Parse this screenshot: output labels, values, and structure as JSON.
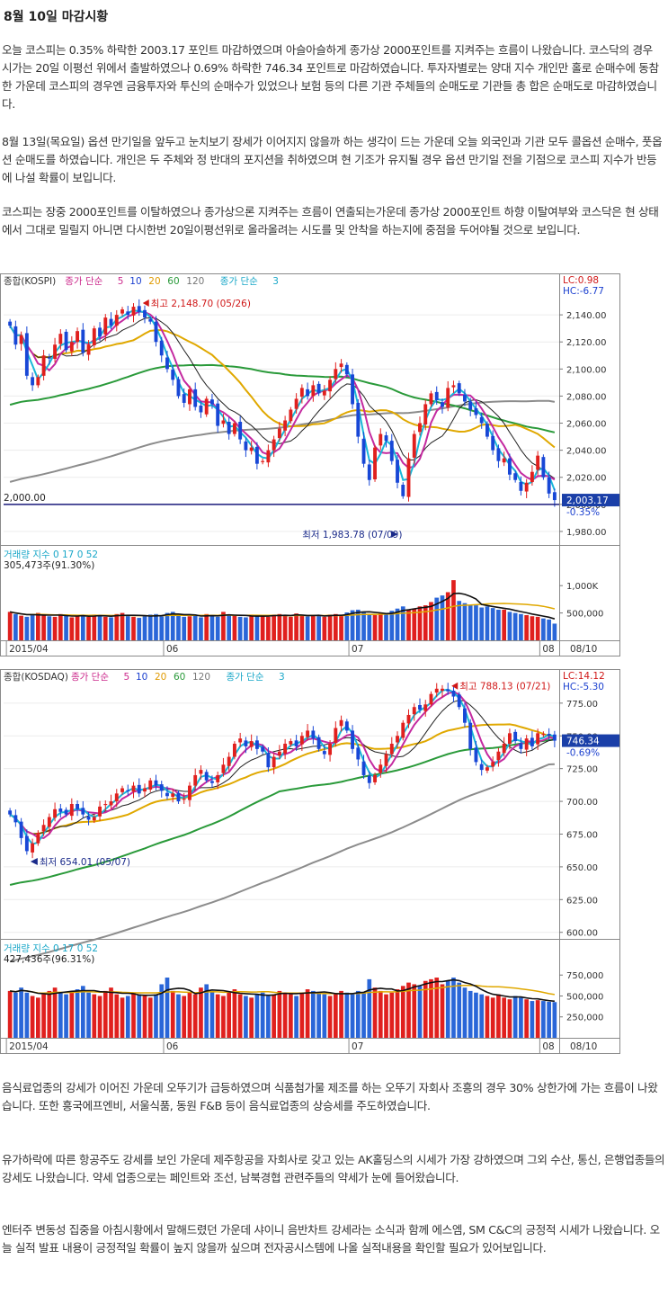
{
  "article": {
    "title": "8월 10일 마감시황",
    "paragraphs": [
      "오늘 코스피는 0.35% 하락한 2003.17 포인트 마감하였으며 아슬아슬하게 종가상 2000포인트를 지켜주는 흐름이 나왔습니다. 코스닥의 경우 시가는 20일 이평선 위에서 출발하였으나 0.69% 하락한 746.34 포인트로 마감하였습니다. 투자자별로는 양대 지수 개인만 홀로 순매수에 동참한 가운데 코스피의 경우엔 금융투자와 투신의 순매수가 있었으나 보험 등의 다른 기관 주체들의 순매도로 기관들 총 합은 순매도로 마감하였습니다.",
      "8월 13일(목요일) 옵션 만기일을 앞두고 눈치보기 장세가 이어지지 않을까 하는 생각이 드는 가운데 오늘 외국인과 기관 모두 콜옵션 순매수, 풋옵션 순매도를 하였습니다. 개인은 두 주체와 정 반대의 포지션을 취하였으며 현 기조가 유지될 경우 옵션 만기일 전을 기점으로 코스피 지수가 반등에 나설 확률이 보입니다.",
      "코스피는 장중 2000포인트를 이탈하였으나 종가상으론 지켜주는 흐름이 연출되는가운데 종가상 2000포인트 하향 이탈여부와 코스닥은 현 상태에서 그대로 밀릴지 아니면 다시한번 20일이평선위로 올라올려는 시도를 및 안착을 하는지에 중점을 두어야될 것으로 보입니다.",
      "음식료업종의 강세가 이어진 가운데 오뚜기가 급등하였으며 식품첨가물 제조를 하는 오뚜기 자회사 조흥의 경우 30% 상한가에 가는 흐름이 나왔습니다. 또한 흥국에프엔비, 서울식품, 동원 F&B 등이 음식료업종의 상승세를 주도하였습니다.",
      "유가하락에 따른 항공주도 강세를 보인 가운데 제주항공을 자회사로 갖고 있는 AK홀딩스의 시세가 가장 강하였으며 그외 수산, 통신, 은행업종들의 강세도 나왔습니다. 약세 업종으로는 페인트와 조선, 남북경협 관련주들의 약세가 눈에 들어왔습니다.",
      "엔터주 변동성 집중을 아침시황에서 말해드렸던 가운데 샤이니 음반차트 강세라는 소식과 함께 에스엠, SM C&C의 긍정적 시세가 나왔습니다. 오늘 실적 발표 내용이 긍정적일 확률이 높지 않을까 싶으며 전자공시스템에 나올 실적내용을 확인할 필요가 있어보입니다."
    ]
  },
  "chart_data": [
    {
      "type": "candlestick",
      "name": "종합(KOSPI)",
      "legend": [
        "종가 단순",
        "5",
        "10",
        "20",
        "60",
        "120",
        "종가 단순",
        "3"
      ],
      "corner": {
        "lc": "LC:0.98",
        "hc": "HC:-6.77"
      },
      "ylim": [
        1970,
        2160
      ],
      "yticks": [
        1980,
        2000,
        2020,
        2040,
        2060,
        2080,
        2100,
        2120,
        2140
      ],
      "ytick_labels": [
        "1,980.00",
        "2,000.00",
        "2,020.00",
        "2,040.00",
        "2,060.00",
        "2,080.00",
        "2,100.00",
        "2,120.00",
        "2,140.00"
      ],
      "hline": {
        "value": 2000,
        "label": "2,000.00"
      },
      "high_note": {
        "text": "최고 2,148.70 (05/26)",
        "index": 23,
        "value": 2148.7
      },
      "low_note": {
        "text": "최저 1,983.78 (07/09)",
        "index": 70,
        "value": 1983.78
      },
      "last": {
        "text": "2,003.17",
        "change": "-0.35%",
        "value": 2003.17
      },
      "x_labels": [
        {
          "i": 0,
          "t": "2015/04"
        },
        {
          "i": 28,
          "t": "06"
        },
        {
          "i": 61,
          "t": "07"
        },
        {
          "i": 95,
          "t": "08"
        }
      ],
      "end_label": "08/10",
      "close": [
        2132,
        2118,
        2125,
        2095,
        2088,
        2094,
        2110,
        2108,
        2118,
        2126,
        2114,
        2120,
        2128,
        2112,
        2118,
        2130,
        2124,
        2138,
        2132,
        2140,
        2144,
        2140,
        2146,
        2142,
        2138,
        2135,
        2120,
        2110,
        2100,
        2092,
        2080,
        2075,
        2085,
        2072,
        2068,
        2078,
        2074,
        2058,
        2062,
        2052,
        2060,
        2048,
        2040,
        2042,
        2030,
        2032,
        2040,
        2048,
        2056,
        2062,
        2070,
        2078,
        2086,
        2080,
        2088,
        2082,
        2084,
        2092,
        2100,
        2104,
        2096,
        2074,
        2050,
        2030,
        2018,
        2042,
        2052,
        2047,
        2032,
        2016,
        2006,
        2034,
        2052,
        2060,
        2074,
        2082,
        2077,
        2072,
        2086,
        2088,
        2082,
        2076,
        2070,
        2066,
        2060,
        2050,
        2040,
        2032,
        2034,
        2022,
        2018,
        2010,
        2016,
        2024,
        2036,
        2020,
        2008,
        2003.17
      ],
      "volume": {
        "legend": "거래량 지수 0 17 0 52",
        "summary": "305,473주(91.30%)",
        "yticks": [
          500000,
          1000000
        ],
        "ytick_labels": [
          "500,000",
          "1,000K"
        ],
        "ymax": 1250000,
        "values": [
          520,
          480,
          450,
          430,
          470,
          500,
          460,
          440,
          430,
          480,
          450,
          420,
          440,
          460,
          430,
          470,
          450,
          430,
          420,
          480,
          500,
          460,
          430,
          410,
          450,
          470,
          480,
          440,
          500,
          520,
          460,
          430,
          440,
          470,
          420,
          480,
          440,
          430,
          520,
          460,
          450,
          430,
          420,
          470,
          440,
          450,
          430,
          470,
          480,
          460,
          430,
          490,
          450,
          440,
          460,
          450,
          430,
          470,
          480,
          460,
          510,
          550,
          560,
          520,
          470,
          460,
          500,
          490,
          540,
          580,
          620,
          560,
          580,
          620,
          640,
          700,
          780,
          820,
          880,
          1100,
          720,
          680,
          640,
          640,
          600,
          620,
          590,
          560,
          560,
          520,
          500,
          480,
          460,
          440,
          430,
          400,
          380,
          305
        ]
      }
    },
    {
      "type": "candlestick",
      "name": "종합(KOSDAQ)",
      "legend": [
        "종가 단순",
        "5",
        "10",
        "20",
        "60",
        "120",
        "종가 단순",
        "3"
      ],
      "corner": {
        "lc": "LC:14.12",
        "hc": "HC:-5.30"
      },
      "ylim": [
        595,
        790
      ],
      "yticks": [
        600,
        625,
        650,
        675,
        700,
        725,
        750,
        775
      ],
      "ytick_labels": [
        "600.00",
        "625.00",
        "650.00",
        "675.00",
        "700.00",
        "725.00",
        "750.00",
        "775.00"
      ],
      "high_note": {
        "text": "최고 788.13 (07/21)",
        "index": 78,
        "value": 788.13
      },
      "low_note": {
        "text": "최저 654.01 (05/07)",
        "index": 3,
        "value": 654.01
      },
      "last": {
        "text": "746.34",
        "change": "-0.69%",
        "value": 746.34
      },
      "x_labels": [
        {
          "i": 0,
          "t": "2015/04"
        },
        {
          "i": 28,
          "t": "06"
        },
        {
          "i": 61,
          "t": "07"
        },
        {
          "i": 95,
          "t": "08"
        }
      ],
      "end_label": "08/10",
      "close": [
        690,
        684,
        672,
        662,
        668,
        676,
        682,
        688,
        694,
        692,
        690,
        698,
        694,
        690,
        686,
        688,
        696,
        698,
        700,
        706,
        710,
        708,
        712,
        706,
        710,
        716,
        712,
        708,
        704,
        706,
        700,
        702,
        712,
        720,
        724,
        716,
        714,
        720,
        728,
        734,
        744,
        748,
        742,
        746,
        740,
        738,
        726,
        734,
        738,
        744,
        746,
        742,
        750,
        754,
        748,
        740,
        736,
        744,
        756,
        762,
        754,
        740,
        732,
        720,
        714,
        720,
        728,
        736,
        744,
        750,
        760,
        766,
        772,
        770,
        774,
        782,
        786,
        786,
        784,
        780,
        772,
        760,
        740,
        730,
        724,
        726,
        730,
        738,
        744,
        752,
        746,
        740,
        748,
        742,
        752,
        751.5,
        750,
        746.34
      ],
      "volume": {
        "legend": "거래량 지수 0 17 0 52",
        "summary": "427,436주(96.31%)",
        "yticks": [
          250000,
          500000,
          750000
        ],
        "ytick_labels": [
          "250,000",
          "500,000",
          "750,000"
        ],
        "ymax": 860000,
        "values": [
          560,
          540,
          600,
          540,
          500,
          480,
          520,
          560,
          600,
          540,
          520,
          560,
          580,
          620,
          540,
          520,
          500,
          560,
          600,
          520,
          480,
          500,
          540,
          520,
          500,
          480,
          520,
          640,
          720,
          560,
          520,
          500,
          540,
          520,
          600,
          640,
          560,
          520,
          500,
          540,
          580,
          520,
          500,
          480,
          520,
          540,
          500,
          520,
          560,
          540,
          520,
          500,
          540,
          580,
          560,
          540,
          520,
          500,
          520,
          560,
          540,
          520,
          560,
          540,
          700,
          600,
          560,
          520,
          540,
          580,
          620,
          660,
          640,
          620,
          680,
          700,
          720,
          640,
          680,
          720,
          660,
          600,
          560,
          540,
          520,
          500,
          480,
          520,
          480,
          460,
          500,
          480,
          460,
          440,
          450,
          440,
          430,
          427
        ]
      }
    }
  ]
}
